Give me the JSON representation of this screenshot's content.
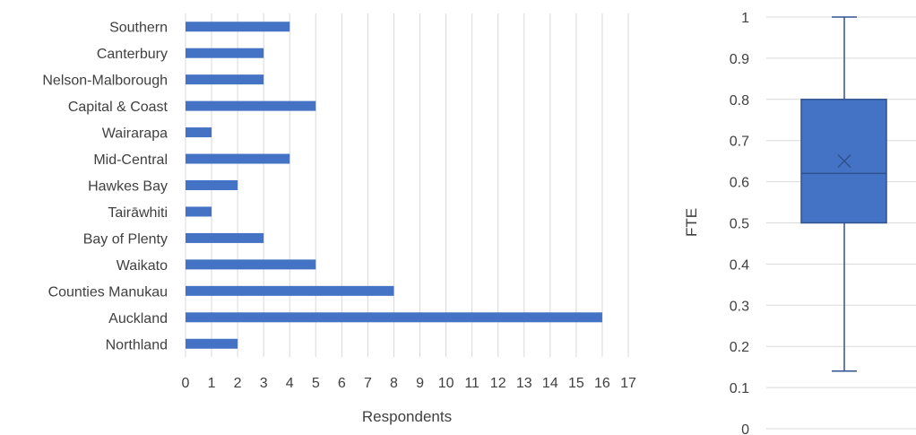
{
  "chart_data": [
    {
      "type": "bar",
      "orientation": "horizontal",
      "categories": [
        "Southern",
        "Canterbury",
        "Nelson-Malborough",
        "Capital & Coast",
        "Wairarapa",
        "Mid-Central",
        "Hawkes Bay",
        "Tairāwhiti",
        "Bay of Plenty",
        "Waikato",
        "Counties Manukau",
        "Auckland",
        "Northland"
      ],
      "values": [
        4,
        3,
        3,
        5,
        1,
        4,
        2,
        1,
        3,
        5,
        8,
        16,
        2
      ],
      "xlabel": "Respondents",
      "ylabel": "",
      "xlim": [
        0,
        17
      ],
      "xticks": [
        "0",
        "1",
        "2",
        "3",
        "4",
        "5",
        "6",
        "7",
        "8",
        "9",
        "10",
        "11",
        "12",
        "13",
        "14",
        "15",
        "16",
        "17"
      ],
      "grid": "vertical",
      "bar_color": "#4472C4"
    },
    {
      "type": "box",
      "ylabel": "FTE",
      "ylim": [
        0,
        1
      ],
      "yticks": [
        "0",
        "0.1",
        "0.2",
        "0.3",
        "0.4",
        "0.5",
        "0.6",
        "0.7",
        "0.8",
        "0.9",
        "1"
      ],
      "min": 0.14,
      "q1": 0.5,
      "median": 0.62,
      "q3": 0.8,
      "max": 1.0,
      "mean": 0.65,
      "grid": "horizontal",
      "box_color": "#4472C4"
    }
  ]
}
